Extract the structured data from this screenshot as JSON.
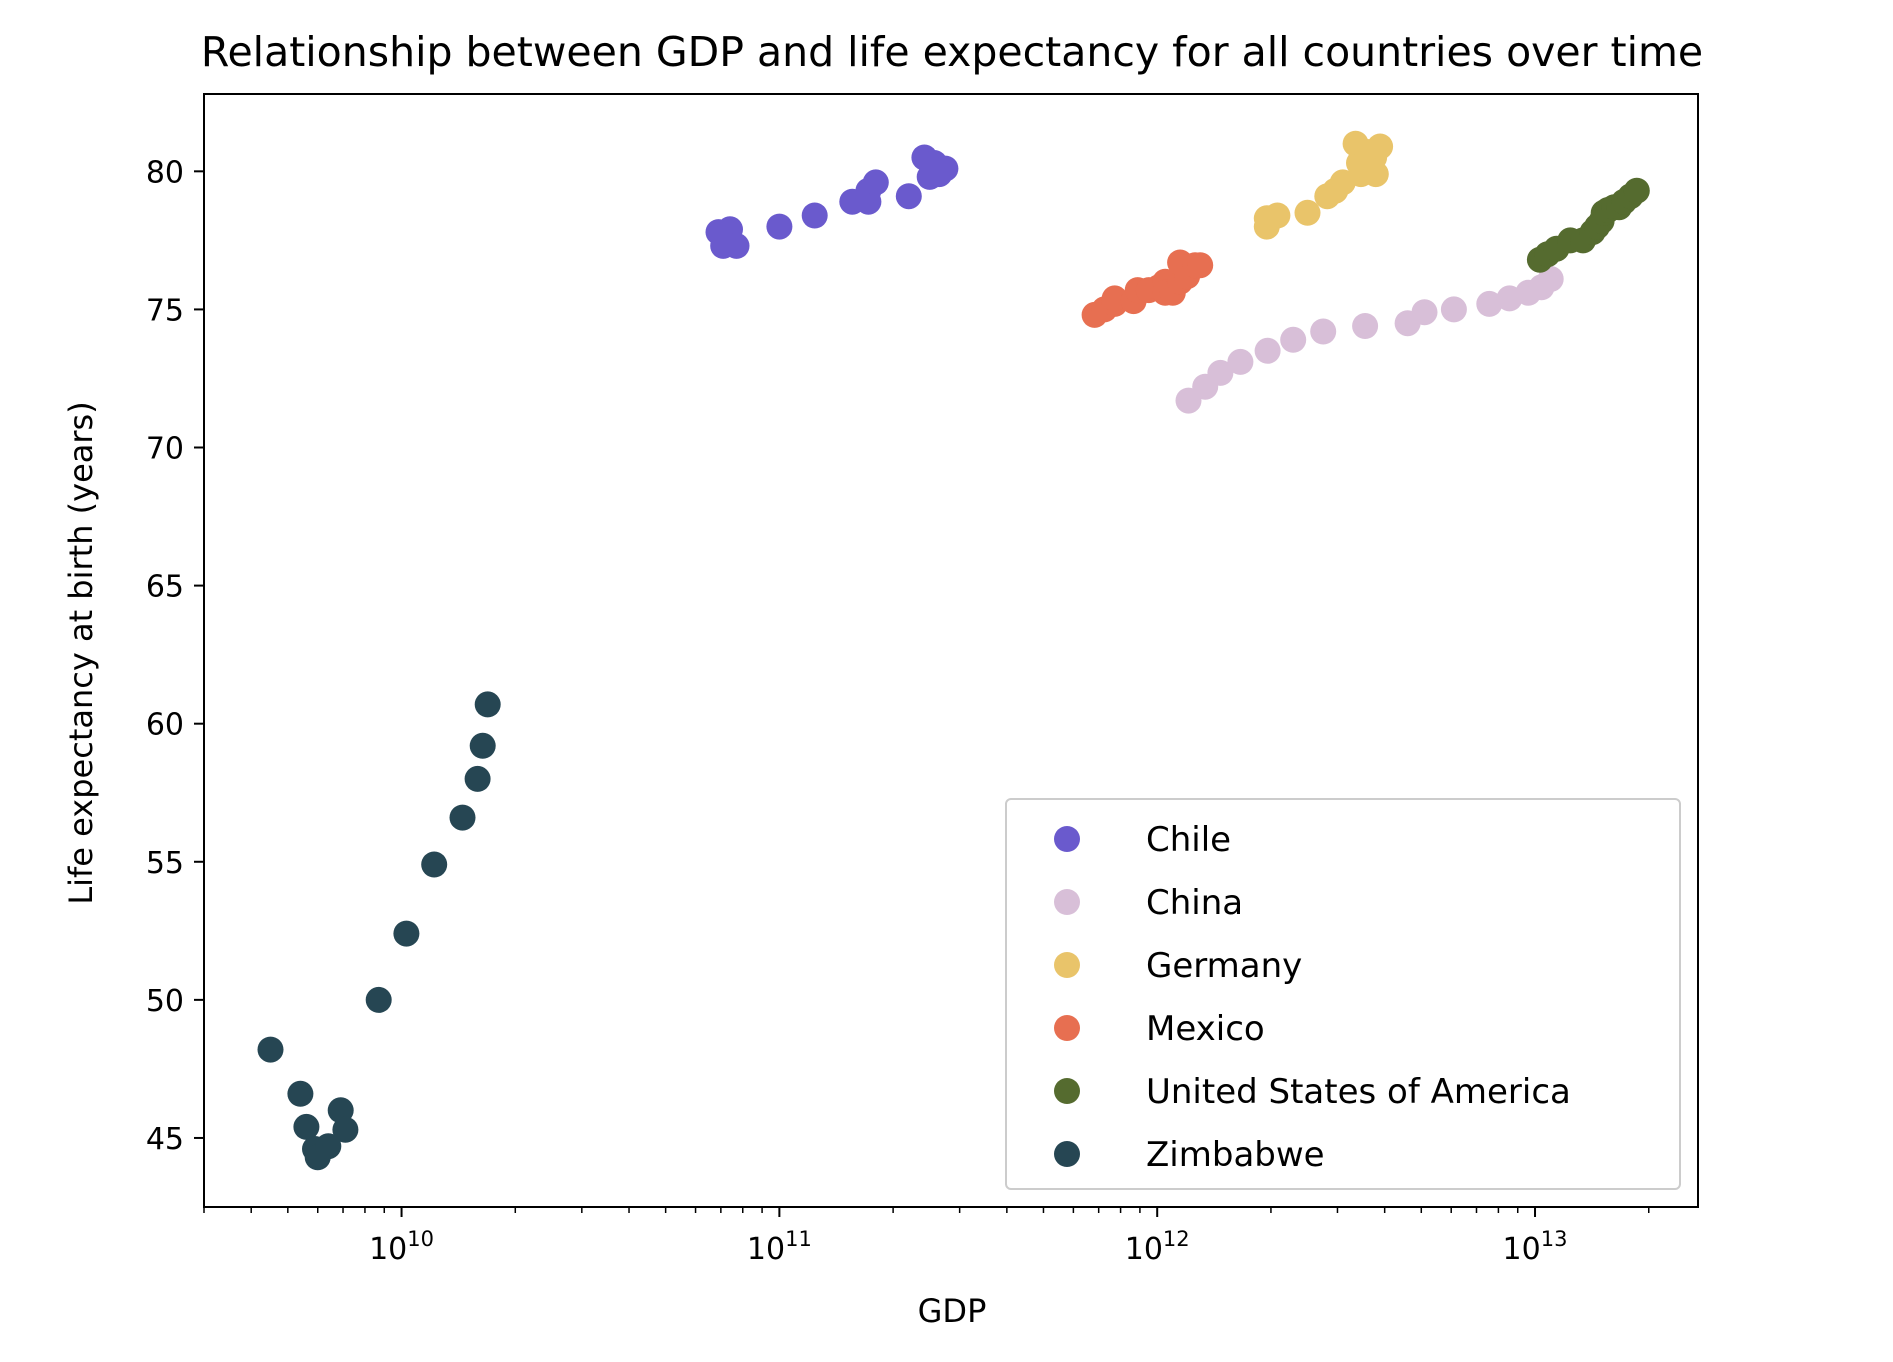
{
  "chart_data": {
    "type": "scatter",
    "title": "Relationship between GDP and life expectancy for all countries over time",
    "xlabel": "GDP",
    "ylabel": "Life expectancy at birth (years)",
    "xscale": "log",
    "xlim": [
      3000000000.0,
      27000000000000.0
    ],
    "ylim": [
      42.5,
      82.8
    ],
    "xticks": [
      {
        "value": 10000000000.0,
        "base": "10",
        "exp": "10"
      },
      {
        "value": 100000000000.0,
        "base": "10",
        "exp": "11"
      },
      {
        "value": 1000000000000.0,
        "base": "10",
        "exp": "12"
      },
      {
        "value": 10000000000000.0,
        "base": "10",
        "exp": "13"
      }
    ],
    "yticks": [
      45,
      50,
      55,
      60,
      65,
      70,
      75,
      80
    ],
    "legend": {
      "position": "lower-right"
    },
    "series": [
      {
        "name": "Chile",
        "color": "#6a5acd",
        "points": [
          [
            69000000000.0,
            77.8
          ],
          [
            71000000000.0,
            77.3
          ],
          [
            74000000000.0,
            77.9
          ],
          [
            77000000000.0,
            77.3
          ],
          [
            100000000000.0,
            78.0
          ],
          [
            124000000000.0,
            78.4
          ],
          [
            156000000000.0,
            78.9
          ],
          [
            172000000000.0,
            78.9
          ],
          [
            172000000000.0,
            79.3
          ],
          [
            180000000000.0,
            79.6
          ],
          [
            220000000000.0,
            79.1
          ],
          [
            242000000000.0,
            80.5
          ],
          [
            250000000000.0,
            79.8
          ],
          [
            257000000000.0,
            80.3
          ],
          [
            265000000000.0,
            79.9
          ],
          [
            275000000000.0,
            80.1
          ]
        ]
      },
      {
        "name": "China",
        "color": "#d8bfd8",
        "points": [
          [
            1210000000000.0,
            71.7
          ],
          [
            1340000000000.0,
            72.2
          ],
          [
            1470000000000.0,
            72.7
          ],
          [
            1660000000000.0,
            73.1
          ],
          [
            1960000000000.0,
            73.5
          ],
          [
            2290000000000.0,
            73.9
          ],
          [
            2750000000000.0,
            74.2
          ],
          [
            3550000000000.0,
            74.4
          ],
          [
            4600000000000.0,
            74.5
          ],
          [
            5100000000000.0,
            74.9
          ],
          [
            6100000000000.0,
            75.0
          ],
          [
            7570000000000.0,
            75.2
          ],
          [
            8560000000000.0,
            75.4
          ],
          [
            9600000000000.0,
            75.6
          ],
          [
            10400000000000.0,
            75.8
          ],
          [
            11000000000000.0,
            76.1
          ]
        ]
      },
      {
        "name": "Germany",
        "color": "#e9c46a",
        "points": [
          [
            1950000000000.0,
            78.0
          ],
          [
            1950000000000.0,
            78.3
          ],
          [
            2080000000000.0,
            78.4
          ],
          [
            2500000000000.0,
            78.5
          ],
          [
            2820000000000.0,
            79.1
          ],
          [
            2960000000000.0,
            79.3
          ],
          [
            3100000000000.0,
            79.6
          ],
          [
            3350000000000.0,
            81.0
          ],
          [
            3420000000000.0,
            80.3
          ],
          [
            3460000000000.0,
            79.9
          ],
          [
            3550000000000.0,
            80.2
          ],
          [
            3600000000000.0,
            80.7
          ],
          [
            3750000000000.0,
            80.5
          ],
          [
            3790000000000.0,
            79.9
          ],
          [
            3890000000000.0,
            80.9
          ]
        ]
      },
      {
        "name": "Mexico",
        "color": "#e76f51",
        "points": [
          [
            683000000000.0,
            74.8
          ],
          [
            725000000000.0,
            75.0
          ],
          [
            772000000000.0,
            75.2
          ],
          [
            772000000000.0,
            75.4
          ],
          [
            866000000000.0,
            75.3
          ],
          [
            888000000000.0,
            75.7
          ],
          [
            950000000000.0,
            75.7
          ],
          [
            1010000000000.0,
            75.8
          ],
          [
            1050000000000.0,
            76.0
          ],
          [
            1050000000000.0,
            75.6
          ],
          [
            1100000000000.0,
            75.6
          ],
          [
            1150000000000.0,
            76.0
          ],
          [
            1150000000000.0,
            76.7
          ],
          [
            1200000000000.0,
            76.2
          ],
          [
            1260000000000.0,
            76.6
          ],
          [
            1300000000000.0,
            76.6
          ]
        ]
      },
      {
        "name": "United States of America",
        "color": "#556b2f",
        "points": [
          [
            10300000000000.0,
            76.8
          ],
          [
            10800000000000.0,
            77.0
          ],
          [
            11400000000000.0,
            77.2
          ],
          [
            12400000000000.0,
            77.5
          ],
          [
            13400000000000.0,
            77.5
          ],
          [
            14200000000000.0,
            77.8
          ],
          [
            14600000000000.0,
            78.0
          ],
          [
            15000000000000.0,
            78.2
          ],
          [
            15200000000000.0,
            78.5
          ],
          [
            15600000000000.0,
            78.6
          ],
          [
            16200000000000.0,
            78.7
          ],
          [
            16700000000000.0,
            78.7
          ],
          [
            17200000000000.0,
            78.9
          ],
          [
            17900000000000.0,
            79.1
          ],
          [
            18600000000000.0,
            79.3
          ]
        ]
      },
      {
        "name": "Zimbabwe",
        "color": "#264653",
        "points": [
          [
            4500000000.0,
            48.2
          ],
          [
            5400000000.0,
            46.6
          ],
          [
            5600000000.0,
            45.4
          ],
          [
            5900000000.0,
            44.6
          ],
          [
            6000000000.0,
            44.3
          ],
          [
            6400000000.0,
            44.7
          ],
          [
            6900000000.0,
            46.0
          ],
          [
            7100000000.0,
            45.3
          ],
          [
            8700000000.0,
            50.0
          ],
          [
            10300000000.0,
            52.4
          ],
          [
            12200000000.0,
            54.9
          ],
          [
            14500000000.0,
            56.6
          ],
          [
            15900000000.0,
            58.0
          ],
          [
            16400000000.0,
            59.2
          ],
          [
            16900000000.0,
            60.7
          ]
        ]
      }
    ]
  }
}
